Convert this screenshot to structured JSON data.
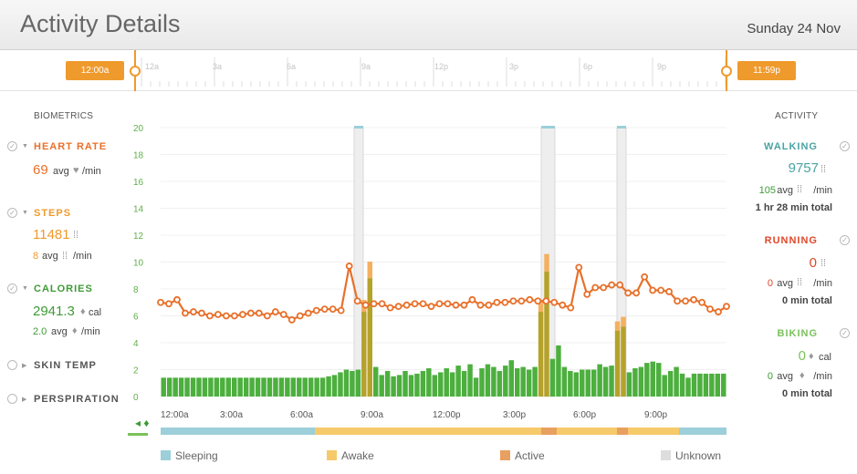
{
  "header": {
    "title": "Activity Details",
    "date": "Sunday 24 Nov"
  },
  "timeline": {
    "start_handle": "12:00a",
    "end_handle": "11:59p",
    "hour_labels": [
      "12a",
      "3a",
      "6a",
      "9a",
      "12p",
      "3p",
      "6p",
      "9p"
    ]
  },
  "biometrics": {
    "heading": "BIOMETRICS",
    "heart_rate": {
      "label": "HEART RATE",
      "avg": "69",
      "avg_suffix": "avg",
      "unit": "/min"
    },
    "steps": {
      "label": "STEPS",
      "value": "11481",
      "avg": "8",
      "avg_suffix": "avg",
      "unit": "/min"
    },
    "calories": {
      "label": "CALORIES",
      "value": "2941.3",
      "unit": "cal",
      "avg": "2.0",
      "avg_suffix": "avg",
      "avg_unit": "/min"
    },
    "skin_temp": {
      "label": "SKIN TEMP"
    },
    "perspiration": {
      "label": "PERSPIRATION"
    }
  },
  "activity": {
    "heading": "ACTIVITY",
    "walking": {
      "label": "WALKING",
      "value": "9757",
      "avg": "105",
      "avg_suffix": "avg",
      "unit": "/min",
      "total": "1 hr 28 min total"
    },
    "running": {
      "label": "RUNNING",
      "value": "0",
      "avg": "0",
      "avg_suffix": "avg",
      "unit": "/min",
      "total": "0 min total"
    },
    "biking": {
      "label": "BIKING",
      "value": "0",
      "unit": "cal",
      "avg": "0",
      "avg_suffix": "avg",
      "avg_unit": "/min",
      "total": "0 min total"
    }
  },
  "legend": {
    "sleeping": "Sleeping",
    "awake": "Awake",
    "active": "Active",
    "unknown": "Unknown"
  },
  "colors": {
    "heart": "#e8702a",
    "steps": "#ef9a2c",
    "calories": "#3d9b35",
    "walking": "#4aa3a3",
    "running": "#e0482a",
    "biking": "#7ac25a",
    "bar_green": "#4caf3e",
    "bar_olive": "#b5a22a",
    "bar_orange": "#f4b060",
    "sleeping": "#9ccfd9",
    "awake": "#f6c96a",
    "active": "#e8a060",
    "unknown": "#dddddd"
  },
  "chart_data": {
    "type": "bar",
    "title": "",
    "y_ticks": [
      0,
      2,
      4,
      6,
      8,
      10,
      12,
      14,
      16,
      18,
      20
    ],
    "ylim": [
      0,
      20
    ],
    "x_ticks": [
      "12:00a",
      "3:00a",
      "6:00a",
      "9:00a",
      "12:00p",
      "3:00p",
      "6:00p",
      "9:00p"
    ],
    "series": [
      {
        "name": "calories",
        "values": [
          1.4,
          1.4,
          1.4,
          1.4,
          1.4,
          1.4,
          1.4,
          1.4,
          1.4,
          1.4,
          1.4,
          1.4,
          1.4,
          1.4,
          1.4,
          1.4,
          1.4,
          1.4,
          1.4,
          1.4,
          1.4,
          1.4,
          1.4,
          1.4,
          1.4,
          1.4,
          1.4,
          1.4,
          1.5,
          1.6,
          1.8,
          2.0,
          1.9,
          2.0,
          6.3,
          8.8,
          2.2,
          1.6,
          1.9,
          1.5,
          1.6,
          1.9,
          1.6,
          1.7,
          1.9,
          2.1,
          1.6,
          1.8,
          2.1,
          1.8,
          2.3,
          1.9,
          2.4,
          1.4,
          2.1,
          2.4,
          2.2,
          1.9,
          2.3,
          2.7,
          2.1,
          2.2,
          2.0,
          2.2,
          6.3,
          9.3,
          2.8,
          3.8,
          2.2,
          1.9,
          1.8,
          2.0,
          2.0,
          2.0,
          2.4,
          2.2,
          2.3,
          4.9,
          5.2,
          1.8,
          2.1,
          2.2,
          2.5,
          2.6,
          2.5,
          1.6,
          1.9,
          2.2,
          1.7,
          1.4,
          1.7,
          1.7,
          1.7,
          1.7,
          1.7,
          1.7
        ]
      },
      {
        "name": "heart_rate",
        "values": [
          7.0,
          6.9,
          7.2,
          6.2,
          6.3,
          6.2,
          6.0,
          6.1,
          6.0,
          6.0,
          6.1,
          6.2,
          6.2,
          6.0,
          6.3,
          6.1,
          5.7,
          6.0,
          6.2,
          6.4,
          6.5,
          6.5,
          6.4,
          9.7,
          7.1,
          6.8,
          6.9,
          6.9,
          6.6,
          6.7,
          6.8,
          6.9,
          6.9,
          6.7,
          6.9,
          6.9,
          6.8,
          6.8,
          7.2,
          6.8,
          6.8,
          7.0,
          7.0,
          7.1,
          7.1,
          7.2,
          7.1,
          7.1,
          7.0,
          6.8,
          6.6,
          9.6,
          7.6,
          8.1,
          8.1,
          8.3,
          8.3,
          7.7,
          7.7,
          8.9,
          7.9,
          7.9,
          7.8,
          7.1,
          7.1,
          7.2,
          7.0,
          6.5,
          6.3,
          6.7
        ]
      }
    ],
    "activity_markers": [
      "walking",
      "walking",
      "walking"
    ]
  }
}
